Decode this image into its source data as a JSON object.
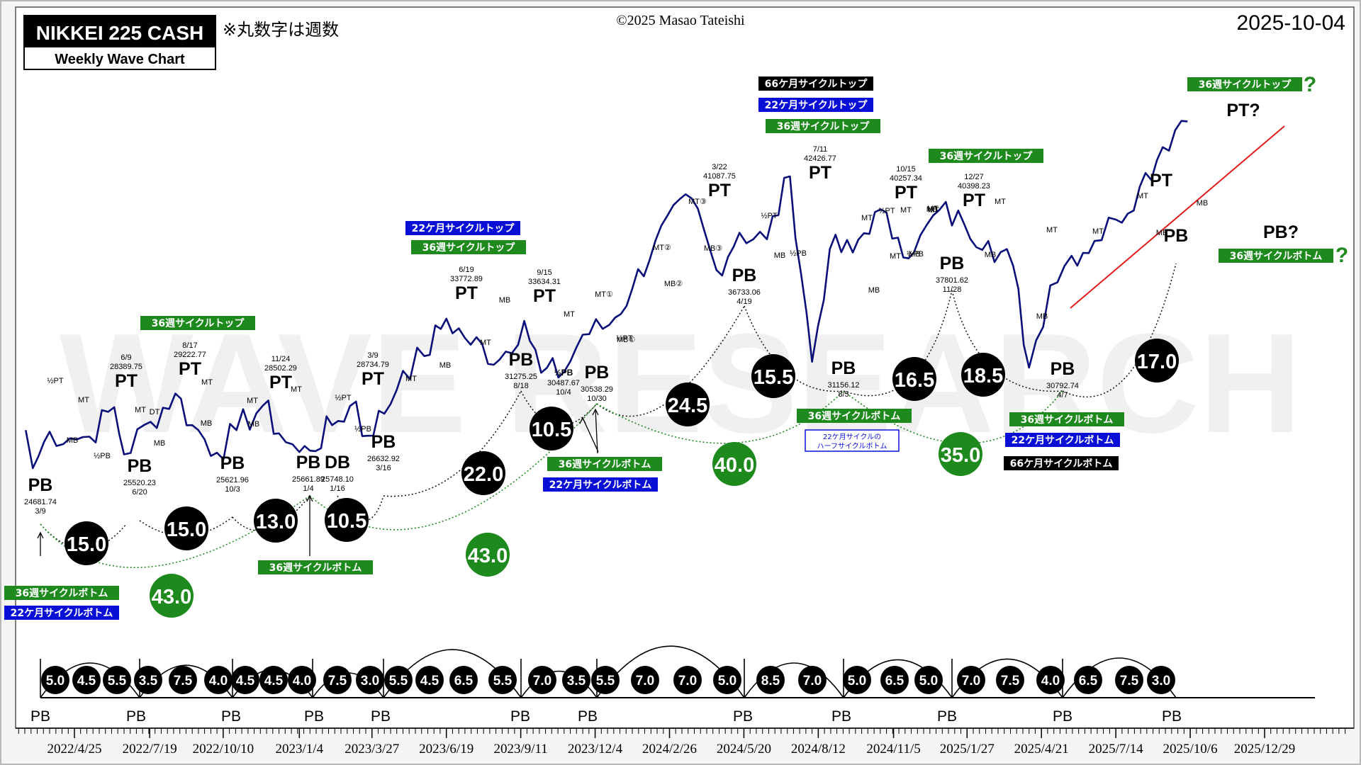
{
  "header": {
    "title": "NIKKEI 225 CASH",
    "subtitle": "Weekly Wave Chart",
    "note": "※丸数字は週数",
    "copyright": "©2025 Masao Tateishi",
    "date": "2025-10-04"
  },
  "watermark": "WAVE RESEARCH",
  "colors": {
    "price_line": "#0a0f7a",
    "trend_line": "#e21b1b",
    "green_label": "#1e8a1e",
    "blue_label": "#0a0fd6",
    "black_label": "#000000",
    "bubble_black": "#000000",
    "bubble_green": "#1e8a1e"
  },
  "chart_data": {
    "type": "line",
    "x_axis": {
      "tick_labels": [
        "2022/4/25",
        "2022/7/19",
        "2022/10/10",
        "2023/1/4",
        "2023/3/27",
        "2023/6/19",
        "2023/9/11",
        "2023/12/4",
        "2024/2/26",
        "2024/5/20",
        "2024/8/12",
        "2024/11/5",
        "2025/1/27",
        "2025/4/21",
        "2025/7/14",
        "2025/10/6",
        "2025/12/29"
      ]
    },
    "series": [
      {
        "x": [
          "2022/3/1",
          "2022/3/9",
          "2022/3/28",
          "2022/4/20",
          "2022/5/12",
          "2022/6/9",
          "2022/6/20",
          "2022/7/20",
          "2022/8/17",
          "2022/9/5",
          "2022/10/3",
          "2022/10/25",
          "2022/11/24",
          "2022/12/12",
          "2023/1/4",
          "2023/1/16",
          "2023/2/10",
          "2023/3/9",
          "2023/3/16",
          "2023/4/10",
          "2023/5/1",
          "2023/5/25",
          "2023/6/19",
          "2023/7/10",
          "2023/8/18",
          "2023/9/15",
          "2023/10/4",
          "2023/10/30",
          "2023/11/20",
          "2023/12/20",
          "2024/1/15",
          "2024/2/10",
          "2024/3/22",
          "2024/4/19",
          "2024/5/15",
          "2024/6/15",
          "2024/7/11",
          "2024/8/5",
          "2024/8/25",
          "2024/9/20",
          "2024/10/15",
          "2024/11/10",
          "2024/11/28",
          "2024/12/27",
          "2025/1/24",
          "2025/2/20",
          "2025/3/20",
          "2025/4/7",
          "2025/5/1",
          "2025/5/25",
          "2025/6/20",
          "2025/7/14",
          "2025/8/10",
          "2025/9/5",
          "2025/9/26",
          "2025/10/3"
        ],
        "values": [
          27000,
          24681.74,
          26900,
          26500,
          26600,
          28389.75,
          25520.23,
          27500,
          29222.77,
          27300,
          25621.96,
          27000,
          28502.29,
          26800,
          25661.89,
          25748.1,
          27300,
          28734.79,
          26632.92,
          28000,
          30600,
          31500,
          33772.89,
          32600,
          31275.25,
          33634.31,
          30487.67,
          30538.29,
          32800,
          33400,
          35600,
          38500,
          41087.75,
          36733.06,
          39000,
          38600,
          42426.77,
          31156.12,
          38000,
          37800,
          40257.34,
          38700,
          37801.62,
          40398.23,
          39500,
          38500,
          37000,
          30792.74,
          35800,
          37600,
          38500,
          39800,
          41800,
          44200,
          45800,
          45770
        ]
      }
    ],
    "annotations": {
      "pivots": [
        {
          "label": "PB",
          "date": "3/9",
          "value": "24681.74"
        },
        {
          "label": "PT",
          "date": "6/9",
          "value": "28389.75"
        },
        {
          "label": "PB",
          "date": "6/20",
          "value": "25520.23"
        },
        {
          "label": "PT",
          "date": "8/17",
          "value": "29222.77"
        },
        {
          "label": "PB",
          "date": "10/3",
          "value": "25621.96"
        },
        {
          "label": "PT",
          "date": "11/24",
          "value": "28502.29"
        },
        {
          "label": "PB",
          "date": "1/4",
          "value": "25661.89"
        },
        {
          "label": "DB",
          "date": "1/16",
          "value": "25748.10"
        },
        {
          "label": "PT",
          "date": "3/9",
          "value": "28734.79"
        },
        {
          "label": "PB",
          "date": "3/16",
          "value": "26632.92"
        },
        {
          "label": "PT",
          "date": "6/19",
          "value": "33772.89"
        },
        {
          "label": "PB",
          "date": "8/18",
          "value": "31275.25"
        },
        {
          "label": "PT",
          "date": "9/15",
          "value": "33634.31"
        },
        {
          "label": "½PB",
          "date": "10/4",
          "value": "30487.67"
        },
        {
          "label": "PB",
          "date": "10/30",
          "value": "30538.29"
        },
        {
          "label": "PT",
          "date": "3/22",
          "value": "41087.75"
        },
        {
          "label": "PB",
          "date": "4/19",
          "value": "36733.06"
        },
        {
          "label": "PT",
          "date": "7/11",
          "value": "42426.77"
        },
        {
          "label": "PB",
          "date": "8/5",
          "value": "31156.12"
        },
        {
          "label": "PT",
          "date": "10/15",
          "value": "40257.34"
        },
        {
          "label": "PB",
          "date": "11/28",
          "value": "37801.62"
        },
        {
          "label": "PT",
          "date": "12/27",
          "value": "40398.23"
        },
        {
          "label": "PB",
          "date": "4/7",
          "value": "30792.74"
        },
        {
          "label": "PT",
          "date": "",
          "value": ""
        },
        {
          "label": "PB",
          "date": "",
          "value": ""
        }
      ],
      "small_labels": [
        "½PT",
        "MT",
        "MB",
        "½PB",
        "MT",
        "DT",
        "MB",
        "MT",
        "MB",
        "MT",
        "MB",
        "MT",
        "½PT",
        "½PB",
        "MT",
        "MB",
        "MT",
        "MB",
        "MT",
        "½PT",
        "MT①",
        "MB①",
        "MT②",
        "MB②",
        "MT③",
        "MB③",
        "½PT",
        "MB",
        "½PB",
        "MT",
        "MB",
        "½PT",
        "MT",
        "½PB",
        "MB",
        "MT",
        "MT",
        "MB",
        "MT",
        "MB",
        "MT",
        "MB",
        "MT",
        "MT",
        "MT",
        "MB",
        "MB"
      ],
      "cycle_labels": {
        "c36_top": "36週サイクルトップ",
        "c22m_top": "22ケ月サイクルトップ",
        "c66m_top": "66ケ月サイクルトップ",
        "c36_bottom": "36週サイクルボトム",
        "c22m_bottom": "22ケ月サイクルボトム",
        "c66m_bottom": "66ケ月サイクルボトム",
        "half_cycle_line1": "22ケ月サイクルの",
        "half_cycle_line2": "ハーフサイクルボトム",
        "pt_q": "PT?",
        "pb_q": "PB?",
        "qmark": "?"
      },
      "week_bubbles_black": [
        "15.0",
        "15.0",
        "13.0",
        "10.5",
        "22.0",
        "10.5",
        "24.5",
        "15.5",
        "16.5",
        "18.5",
        "17.0"
      ],
      "week_bubbles_green": [
        "43.0",
        "43.0",
        "40.0",
        "35.0"
      ],
      "bottom_cycle_weeks": [
        "5.0",
        "4.5",
        "5.5",
        "3.5",
        "7.5",
        "4.0",
        "4.5",
        "4.5",
        "4.0",
        "7.5",
        "3.0",
        "5.5",
        "4.5",
        "6.5",
        "5.5",
        "7.0",
        "3.5",
        "5.5",
        "7.0",
        "7.0",
        "5.0",
        "8.5",
        "7.0",
        "5.0",
        "6.5",
        "5.0",
        "7.0",
        "7.5",
        "4.0",
        "6.5",
        "7.5",
        "3.0"
      ],
      "bottom_pb_label": "PB"
    }
  }
}
